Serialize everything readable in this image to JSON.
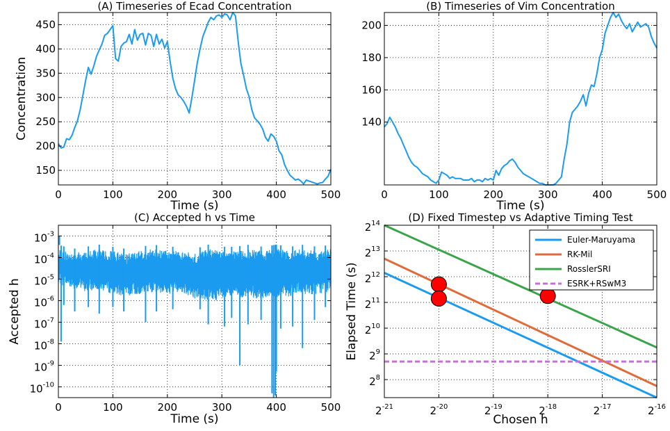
{
  "chart_data": [
    {
      "id": "A",
      "type": "line",
      "title": "(A) Timeseries of Ecad Concentration",
      "xlabel": "Time (s)",
      "ylabel": "Concentration",
      "xlim": [
        0,
        500
      ],
      "ylim": [
        120,
        475
      ],
      "xticks": [
        0,
        100,
        200,
        300,
        400,
        500
      ],
      "yticks": [
        150,
        200,
        250,
        300,
        350,
        400,
        450
      ],
      "grid": true,
      "series": [
        {
          "color": "#1a9bef",
          "x": [
            0,
            5,
            10,
            15,
            20,
            25,
            30,
            35,
            40,
            45,
            50,
            55,
            60,
            65,
            70,
            75,
            80,
            85,
            90,
            95,
            100,
            105,
            110,
            115,
            120,
            125,
            130,
            135,
            140,
            145,
            150,
            155,
            160,
            165,
            170,
            175,
            180,
            185,
            190,
            195,
            200,
            205,
            210,
            215,
            220,
            225,
            230,
            235,
            240,
            245,
            250,
            255,
            260,
            265,
            270,
            275,
            280,
            285,
            290,
            295,
            300,
            305,
            310,
            315,
            320,
            325,
            330,
            335,
            340,
            345,
            350,
            355,
            360,
            365,
            370,
            375,
            380,
            385,
            390,
            395,
            400,
            405,
            410,
            415,
            420,
            425,
            430,
            435,
            440,
            445,
            450,
            455,
            460,
            465,
            470,
            475,
            480,
            485,
            490,
            495,
            500
          ],
          "y": [
            205,
            196,
            198,
            215,
            213,
            222,
            238,
            252,
            275,
            305,
            335,
            362,
            348,
            365,
            385,
            398,
            410,
            428,
            432,
            440,
            448,
            380,
            375,
            405,
            412,
            415,
            430,
            410,
            440,
            418,
            430,
            432,
            408,
            432,
            428,
            405,
            430,
            410,
            420,
            402,
            415,
            375,
            340,
            318,
            305,
            300,
            292,
            282,
            268,
            300,
            335,
            372,
            400,
            425,
            440,
            455,
            465,
            460,
            468,
            470,
            465,
            472,
            470,
            460,
            475,
            468,
            415,
            370,
            345,
            318,
            302,
            275,
            258,
            252,
            245,
            235,
            218,
            210,
            225,
            220,
            210,
            190,
            182,
            162,
            150,
            140,
            135,
            130,
            132,
            128,
            122,
            130,
            128,
            126,
            124,
            122,
            124,
            125,
            132,
            138,
            152
          ]
        }
      ]
    },
    {
      "id": "B",
      "type": "line",
      "title": "(B) Timeseries of Vim Concentration",
      "xlabel": "Time (s)",
      "ylabel": "",
      "xlim": [
        0,
        500
      ],
      "ylim": [
        101,
        208
      ],
      "xticks": [
        0,
        100,
        200,
        300,
        400,
        500
      ],
      "yticks": [
        140,
        160,
        180,
        200
      ],
      "grid": true,
      "series": [
        {
          "color": "#1a9bef",
          "x": [
            0,
            5,
            10,
            15,
            20,
            25,
            30,
            35,
            40,
            45,
            50,
            55,
            60,
            65,
            70,
            75,
            80,
            85,
            90,
            95,
            100,
            105,
            110,
            115,
            120,
            125,
            130,
            135,
            140,
            145,
            150,
            155,
            160,
            165,
            170,
            175,
            180,
            185,
            190,
            195,
            200,
            205,
            210,
            215,
            220,
            225,
            230,
            235,
            240,
            245,
            250,
            255,
            260,
            265,
            270,
            275,
            280,
            285,
            290,
            295,
            300,
            305,
            310,
            315,
            320,
            325,
            330,
            335,
            340,
            345,
            350,
            355,
            360,
            365,
            370,
            375,
            380,
            385,
            390,
            395,
            400,
            405,
            410,
            415,
            420,
            425,
            430,
            435,
            440,
            445,
            450,
            455,
            460,
            465,
            470,
            475,
            480,
            485,
            490,
            495,
            500
          ],
          "y": [
            137,
            139,
            143,
            140,
            137,
            133,
            130,
            126,
            122,
            118,
            115,
            113,
            112,
            110,
            108,
            107,
            106,
            104,
            103,
            102,
            104,
            109,
            108,
            107,
            105,
            106,
            105,
            105,
            105,
            104,
            104,
            104,
            105,
            103,
            104,
            104,
            103,
            105,
            104,
            105,
            104,
            110,
            107,
            111,
            113,
            114,
            116,
            117,
            115,
            112,
            110,
            108,
            107,
            106,
            105,
            104,
            103,
            102,
            102,
            101,
            101,
            101,
            101,
            102,
            104,
            106,
            117,
            126,
            140,
            146,
            148,
            150,
            153,
            157,
            150,
            158,
            163,
            162,
            170,
            180,
            185,
            195,
            200,
            205,
            208,
            205,
            207,
            203,
            200,
            198,
            201,
            196,
            199,
            202,
            199,
            200,
            201,
            199,
            193,
            189,
            186
          ]
        }
      ]
    },
    {
      "id": "C",
      "type": "line",
      "title": "(C) Accepted h vs Time",
      "xlabel": "Time (s)",
      "ylabel": "Accepted h",
      "xlim": [
        0,
        500
      ],
      "ylim": [
        -10.5,
        -2.5
      ],
      "yscale": "log",
      "xticks": [
        0,
        100,
        200,
        300,
        400,
        500
      ],
      "yticks": [
        {
          "base": "10",
          "exp": "-3"
        },
        {
          "base": "10",
          "exp": "-4"
        },
        {
          "base": "10",
          "exp": "-5"
        },
        {
          "base": "10",
          "exp": "-6"
        },
        {
          "base": "10",
          "exp": "-7"
        },
        {
          "base": "10",
          "exp": "-8"
        },
        {
          "base": "10",
          "exp": "-9"
        },
        {
          "base": "10",
          "exp": "-10"
        }
      ],
      "ytick_values": [
        -3,
        -4,
        -5,
        -6,
        -7,
        -8,
        -9,
        -10
      ],
      "grid": true,
      "series": [
        {
          "color": "#1a9bef",
          "band": {
            "x": [
              0,
              25,
              50,
              75,
              100,
              125,
              150,
              175,
              200,
              225,
              250,
              275,
              300,
              325,
              350,
              375,
              400,
              425,
              450,
              475,
              500
            ],
            "upper": [
              -3.6,
              -3.8,
              -3.7,
              -3.6,
              -3.7,
              -3.8,
              -3.7,
              -3.6,
              -3.7,
              -3.7,
              -3.8,
              -3.6,
              -3.7,
              -3.7,
              -3.6,
              -3.7,
              -3.6,
              -3.7,
              -3.6,
              -3.7,
              -3.6
            ],
            "lower": [
              -5.3,
              -5.4,
              -5.6,
              -5.5,
              -5.7,
              -5.8,
              -5.7,
              -5.6,
              -5.7,
              -5.6,
              -5.9,
              -6.0,
              -6.0,
              -5.8,
              -5.9,
              -5.9,
              -5.9,
              -5.8,
              -5.7,
              -5.7,
              -5.6
            ]
          },
          "spikes": [
            {
              "x": 2,
              "y": -3.0
            },
            {
              "x": 5,
              "y": -7.9
            },
            {
              "x": 10,
              "y": -6.2
            },
            {
              "x": 30,
              "y": -6.5
            },
            {
              "x": 55,
              "y": -6.3
            },
            {
              "x": 75,
              "y": -6.6
            },
            {
              "x": 100,
              "y": -6.3
            },
            {
              "x": 120,
              "y": -6.5
            },
            {
              "x": 160,
              "y": -7.0
            },
            {
              "x": 180,
              "y": -6.5
            },
            {
              "x": 210,
              "y": -6.4
            },
            {
              "x": 260,
              "y": -6.4
            },
            {
              "x": 275,
              "y": -7.1
            },
            {
              "x": 305,
              "y": -7.2
            },
            {
              "x": 318,
              "y": -6.8
            },
            {
              "x": 333,
              "y": -9.0
            },
            {
              "x": 348,
              "y": -7.1
            },
            {
              "x": 372,
              "y": -6.9
            },
            {
              "x": 392,
              "y": -10.3
            },
            {
              "x": 395,
              "y": -10.5
            },
            {
              "x": 398,
              "y": -10.4
            },
            {
              "x": 400,
              "y": -9.3
            },
            {
              "x": 408,
              "y": -7.3
            },
            {
              "x": 430,
              "y": -7.2
            },
            {
              "x": 448,
              "y": -8.2
            },
            {
              "x": 470,
              "y": -6.9
            },
            {
              "x": 490,
              "y": -6.3
            }
          ]
        }
      ]
    },
    {
      "id": "D",
      "type": "line",
      "title": "(D) Fixed Timestep vs Adaptive Timing Test",
      "xlabel": "Chosen h",
      "ylabel": "Elapsed Time (s)",
      "xscale": "log2",
      "yscale": "log2",
      "xlim": [
        -21,
        -16
      ],
      "ylim": [
        7.3,
        14.0
      ],
      "xticks": [
        {
          "base": "2",
          "exp": "-21"
        },
        {
          "base": "2",
          "exp": "-20"
        },
        {
          "base": "2",
          "exp": "-19"
        },
        {
          "base": "2",
          "exp": "-18"
        },
        {
          "base": "2",
          "exp": "-17"
        },
        {
          "base": "2",
          "exp": "-16"
        }
      ],
      "xtick_values": [
        -21,
        -20,
        -19,
        -18,
        -17,
        -16
      ],
      "yticks": [
        {
          "base": "2",
          "exp": "8"
        },
        {
          "base": "2",
          "exp": "9"
        },
        {
          "base": "2",
          "exp": "10"
        },
        {
          "base": "2",
          "exp": "11"
        },
        {
          "base": "2",
          "exp": "12"
        },
        {
          "base": "2",
          "exp": "13"
        },
        {
          "base": "2",
          "exp": "14"
        }
      ],
      "ytick_values": [
        8,
        9,
        10,
        11,
        12,
        13,
        14
      ],
      "grid": true,
      "legend": "top-right",
      "series": [
        {
          "name": "Euler-Maruyama",
          "color": "#1a9bef",
          "style": "solid",
          "x": [
            -21,
            -16
          ],
          "y": [
            12.15,
            7.3
          ]
        },
        {
          "name": "RK-Mil",
          "color": "#e06b3a",
          "style": "solid",
          "x": [
            -21,
            -16
          ],
          "y": [
            12.7,
            7.75
          ]
        },
        {
          "name": "RosslerSRI",
          "color": "#3aa44a",
          "style": "solid",
          "x": [
            -21,
            -16
          ],
          "y": [
            14.0,
            9.25
          ]
        },
        {
          "name": "ESRK+RSwM3",
          "color": "#c76fd8",
          "style": "dashed",
          "x": [
            -21,
            -16
          ],
          "y": [
            8.7,
            8.7
          ]
        }
      ],
      "markers": {
        "color": "#ff0000",
        "points": [
          {
            "x": -20,
            "y": 11.7
          },
          {
            "x": -20,
            "y": 11.15
          },
          {
            "x": -18,
            "y": 11.25
          }
        ]
      }
    }
  ]
}
